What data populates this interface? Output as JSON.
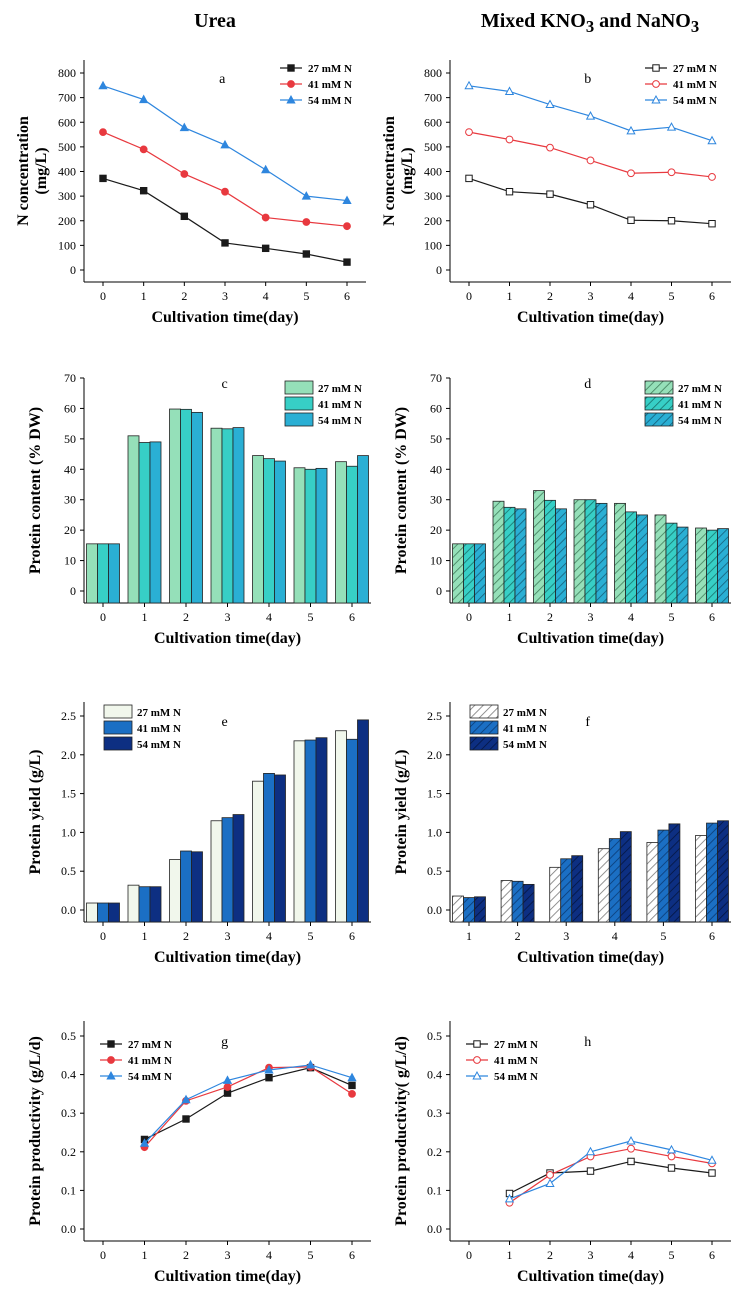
{
  "titles": {
    "left": "Urea",
    "right_prefix": "Mixed KNO",
    "right_mid": " and NaNO",
    "right_sub": "3"
  },
  "colors": {
    "s27": "#1a1a1a",
    "s41": "#e8393f",
    "s54": "#2e86de",
    "c27": "#95e0b9",
    "c41": "#37cfc6",
    "c54": "#2aafd4",
    "e27": "#f1f7ec",
    "e41": "#1b6fc4",
    "e54": "#0d2f82"
  },
  "chart_data": [
    {
      "id": "a",
      "type": "line",
      "letter": "a",
      "xlabel": "Cultivation time(day)",
      "ylabel": [
        "N concentration",
        "(mg/L)"
      ],
      "ylim": [
        0,
        800
      ],
      "yticks": [
        0,
        100,
        200,
        300,
        400,
        500,
        600,
        700,
        800
      ],
      "x": [
        0,
        1,
        2,
        3,
        4,
        5,
        6
      ],
      "xticks": [
        "0",
        "1",
        "2",
        "3",
        "4",
        "5",
        "6"
      ],
      "marker": "filled",
      "series": [
        {
          "name": "27 mM N",
          "values": [
            372,
            322,
            218,
            110,
            88,
            65,
            32
          ]
        },
        {
          "name": "41 mM N",
          "values": [
            560,
            490,
            390,
            318,
            213,
            195,
            178
          ]
        },
        {
          "name": "54 mM N",
          "values": [
            748,
            692,
            578,
            508,
            407,
            300,
            282
          ]
        }
      ]
    },
    {
      "id": "b",
      "type": "line",
      "letter": "b",
      "xlabel": "Cultivation time(day)",
      "ylabel": [
        "N concentration",
        "(mg/L)"
      ],
      "ylim": [
        0,
        800
      ],
      "yticks": [
        0,
        100,
        200,
        300,
        400,
        500,
        600,
        700,
        800
      ],
      "x": [
        0,
        1,
        2,
        3,
        4,
        5,
        6
      ],
      "xticks": [
        "0",
        "1",
        "2",
        "3",
        "4",
        "5",
        "6"
      ],
      "marker": "open",
      "series": [
        {
          "name": "27 mM N",
          "values": [
            372,
            318,
            308,
            265,
            202,
            200,
            188
          ]
        },
        {
          "name": "41 mM N",
          "values": [
            560,
            530,
            497,
            445,
            393,
            397,
            378
          ]
        },
        {
          "name": "54 mM N",
          "values": [
            748,
            725,
            672,
            625,
            565,
            580,
            525
          ]
        }
      ]
    },
    {
      "id": "c",
      "type": "bar",
      "letter": "c",
      "xlabel": "Cultivation time(day)",
      "ylabel": [
        "Protein content (% DW)"
      ],
      "ylim": [
        0,
        70
      ],
      "yticks": [
        0,
        10,
        20,
        30,
        40,
        50,
        60,
        70
      ],
      "categories": [
        "0",
        "1",
        "2",
        "3",
        "4",
        "5",
        "6"
      ],
      "pattern": "solid",
      "series": [
        {
          "name": "27 mM N",
          "values": [
            15.5,
            51,
            59.8,
            53.5,
            44.5,
            40.5,
            42.5
          ]
        },
        {
          "name": "41 mM N",
          "values": [
            15.5,
            48.8,
            59.7,
            53.3,
            43.5,
            40,
            41
          ]
        },
        {
          "name": "54 mM N",
          "values": [
            15.5,
            49,
            58.7,
            53.7,
            42.7,
            40.3,
            44.5
          ]
        }
      ]
    },
    {
      "id": "d",
      "type": "bar",
      "letter": "d",
      "xlabel": "Cultivation time(day)",
      "ylabel": [
        "Protein content (% DW)"
      ],
      "ylim": [
        0,
        70
      ],
      "yticks": [
        0,
        10,
        20,
        30,
        40,
        50,
        60,
        70
      ],
      "categories": [
        "0",
        "1",
        "2",
        "3",
        "4",
        "5",
        "6"
      ],
      "pattern": "hatch",
      "series": [
        {
          "name": "27 mM N",
          "values": [
            15.5,
            29.5,
            33,
            30,
            28.8,
            25,
            20.7
          ]
        },
        {
          "name": "41 mM N",
          "values": [
            15.5,
            27.5,
            29.8,
            30,
            26,
            22.3,
            20
          ]
        },
        {
          "name": "54 mM N",
          "values": [
            15.5,
            27,
            27,
            28.8,
            25,
            21,
            20.5
          ]
        }
      ]
    },
    {
      "id": "e",
      "type": "bar",
      "letter": "e",
      "xlabel": "Cultivation time(day)",
      "ylabel": [
        "Protein yield (g/L)"
      ],
      "ylim": [
        0,
        2.5
      ],
      "yticks": [
        "0.0",
        "0.5",
        "1.0",
        "1.5",
        "2.0",
        "2.5"
      ],
      "categories": [
        "0",
        "1",
        "2",
        "3",
        "4",
        "5",
        "6"
      ],
      "pattern": "solid",
      "series": [
        {
          "name": "27 mM N",
          "values": [
            0.09,
            0.32,
            0.65,
            1.15,
            1.66,
            2.18,
            2.31
          ]
        },
        {
          "name": "41 mM N",
          "values": [
            0.09,
            0.3,
            0.76,
            1.19,
            1.76,
            2.19,
            2.2
          ]
        },
        {
          "name": "54 mM N",
          "values": [
            0.09,
            0.3,
            0.75,
            1.23,
            1.74,
            2.22,
            2.45
          ]
        }
      ]
    },
    {
      "id": "f",
      "type": "bar",
      "letter": "f",
      "xlabel": "Cultivation time(day)",
      "ylabel": [
        "Protein yield (g/L)"
      ],
      "ylim": [
        0,
        2.5
      ],
      "yticks": [
        "0.0",
        "0.5",
        "1.0",
        "1.5",
        "2.0",
        "2.5"
      ],
      "categories": [
        "1",
        "2",
        "3",
        "4",
        "5",
        "6"
      ],
      "pattern": "hatch",
      "series": [
        {
          "name": "27 mM N",
          "values": [
            0.18,
            0.38,
            0.55,
            0.79,
            0.87,
            0.96
          ]
        },
        {
          "name": "41 mM N",
          "values": [
            0.16,
            0.37,
            0.66,
            0.92,
            1.03,
            1.12
          ]
        },
        {
          "name": "54 mM N",
          "values": [
            0.17,
            0.33,
            0.7,
            1.01,
            1.11,
            1.15
          ]
        }
      ]
    },
    {
      "id": "g",
      "type": "line",
      "letter": "g",
      "xlabel": "Cultivation time(day)",
      "ylabel": [
        "Protein productivity (g/L/d)"
      ],
      "ylim": [
        0,
        0.5
      ],
      "yticks": [
        "0.0",
        "0.1",
        "0.2",
        "0.3",
        "0.4",
        "0.5"
      ],
      "x": [
        1,
        2,
        3,
        4,
        5,
        6
      ],
      "xticks": [
        "0",
        "1",
        "2",
        "3",
        "4",
        "5",
        "6"
      ],
      "marker": "filled",
      "series": [
        {
          "name": "27 mM N",
          "values": [
            0.232,
            0.285,
            0.352,
            0.392,
            0.418,
            0.372
          ]
        },
        {
          "name": "41 mM N",
          "values": [
            0.212,
            0.332,
            0.368,
            0.418,
            0.42,
            0.35
          ]
        },
        {
          "name": "54 mM N",
          "values": [
            0.222,
            0.335,
            0.385,
            0.412,
            0.425,
            0.392
          ]
        }
      ]
    },
    {
      "id": "h",
      "type": "line",
      "letter": "h",
      "xlabel": "Cultivation time(day)",
      "ylabel": [
        "Protein productivity( g/L/d)"
      ],
      "ylim": [
        0,
        0.5
      ],
      "yticks": [
        "0.0",
        "0.1",
        "0.2",
        "0.3",
        "0.4",
        "0.5"
      ],
      "x": [
        1,
        2,
        3,
        4,
        5,
        6
      ],
      "xticks": [
        "0",
        "1",
        "2",
        "3",
        "4",
        "5",
        "6"
      ],
      "marker": "open",
      "series": [
        {
          "name": "27 mM N",
          "values": [
            0.092,
            0.145,
            0.15,
            0.175,
            0.158,
            0.145
          ]
        },
        {
          "name": "41 mM N",
          "values": [
            0.068,
            0.14,
            0.188,
            0.208,
            0.188,
            0.17
          ]
        },
        {
          "name": "54 mM N",
          "values": [
            0.078,
            0.118,
            0.2,
            0.228,
            0.205,
            0.178
          ]
        }
      ]
    }
  ]
}
